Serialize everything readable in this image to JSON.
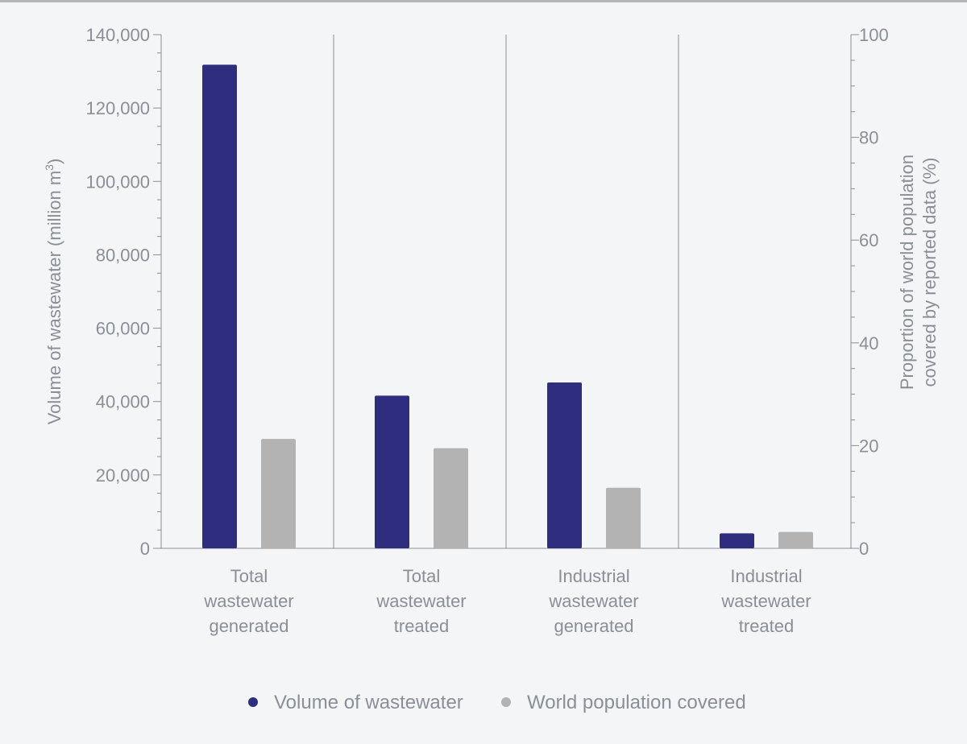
{
  "chart_data": {
    "type": "bar",
    "categories": [
      [
        "Total",
        "wastewater",
        "generated"
      ],
      [
        "Total",
        "wastewater",
        "treated"
      ],
      [
        "Industrial",
        "wastewater",
        "generated"
      ],
      [
        "Industrial",
        "wastewater",
        "treated"
      ]
    ],
    "series": [
      {
        "name": "Volume of wastewater",
        "axis": "left",
        "color": "#2e2d7e",
        "values": [
          131800,
          41600,
          45200,
          4100
        ]
      },
      {
        "name": "World population covered",
        "axis": "right",
        "color": "#b3b3b3",
        "values": [
          21.3,
          19.5,
          11.8,
          3.2
        ]
      }
    ],
    "y_left": {
      "label": "Volume of wastewater (million m",
      "label_sup": "3",
      "label_end": ")",
      "ylim": [
        0,
        140000
      ],
      "ticks": [
        0,
        20000,
        40000,
        60000,
        80000,
        100000,
        120000,
        140000
      ],
      "tick_labels": [
        "0",
        "20,000",
        "40,000",
        "60,000",
        "80,000",
        "100,000",
        "120,000",
        "140,000"
      ]
    },
    "y_right": {
      "label_lines": [
        "Proportion of world population",
        "covered by reported data (%)"
      ],
      "ylim": [
        0,
        100
      ],
      "ticks": [
        0,
        20,
        40,
        60,
        80,
        100
      ],
      "tick_labels": [
        "0",
        "20",
        "40",
        "60",
        "80",
        "100"
      ]
    },
    "legend_position": "bottom",
    "grid": false
  }
}
